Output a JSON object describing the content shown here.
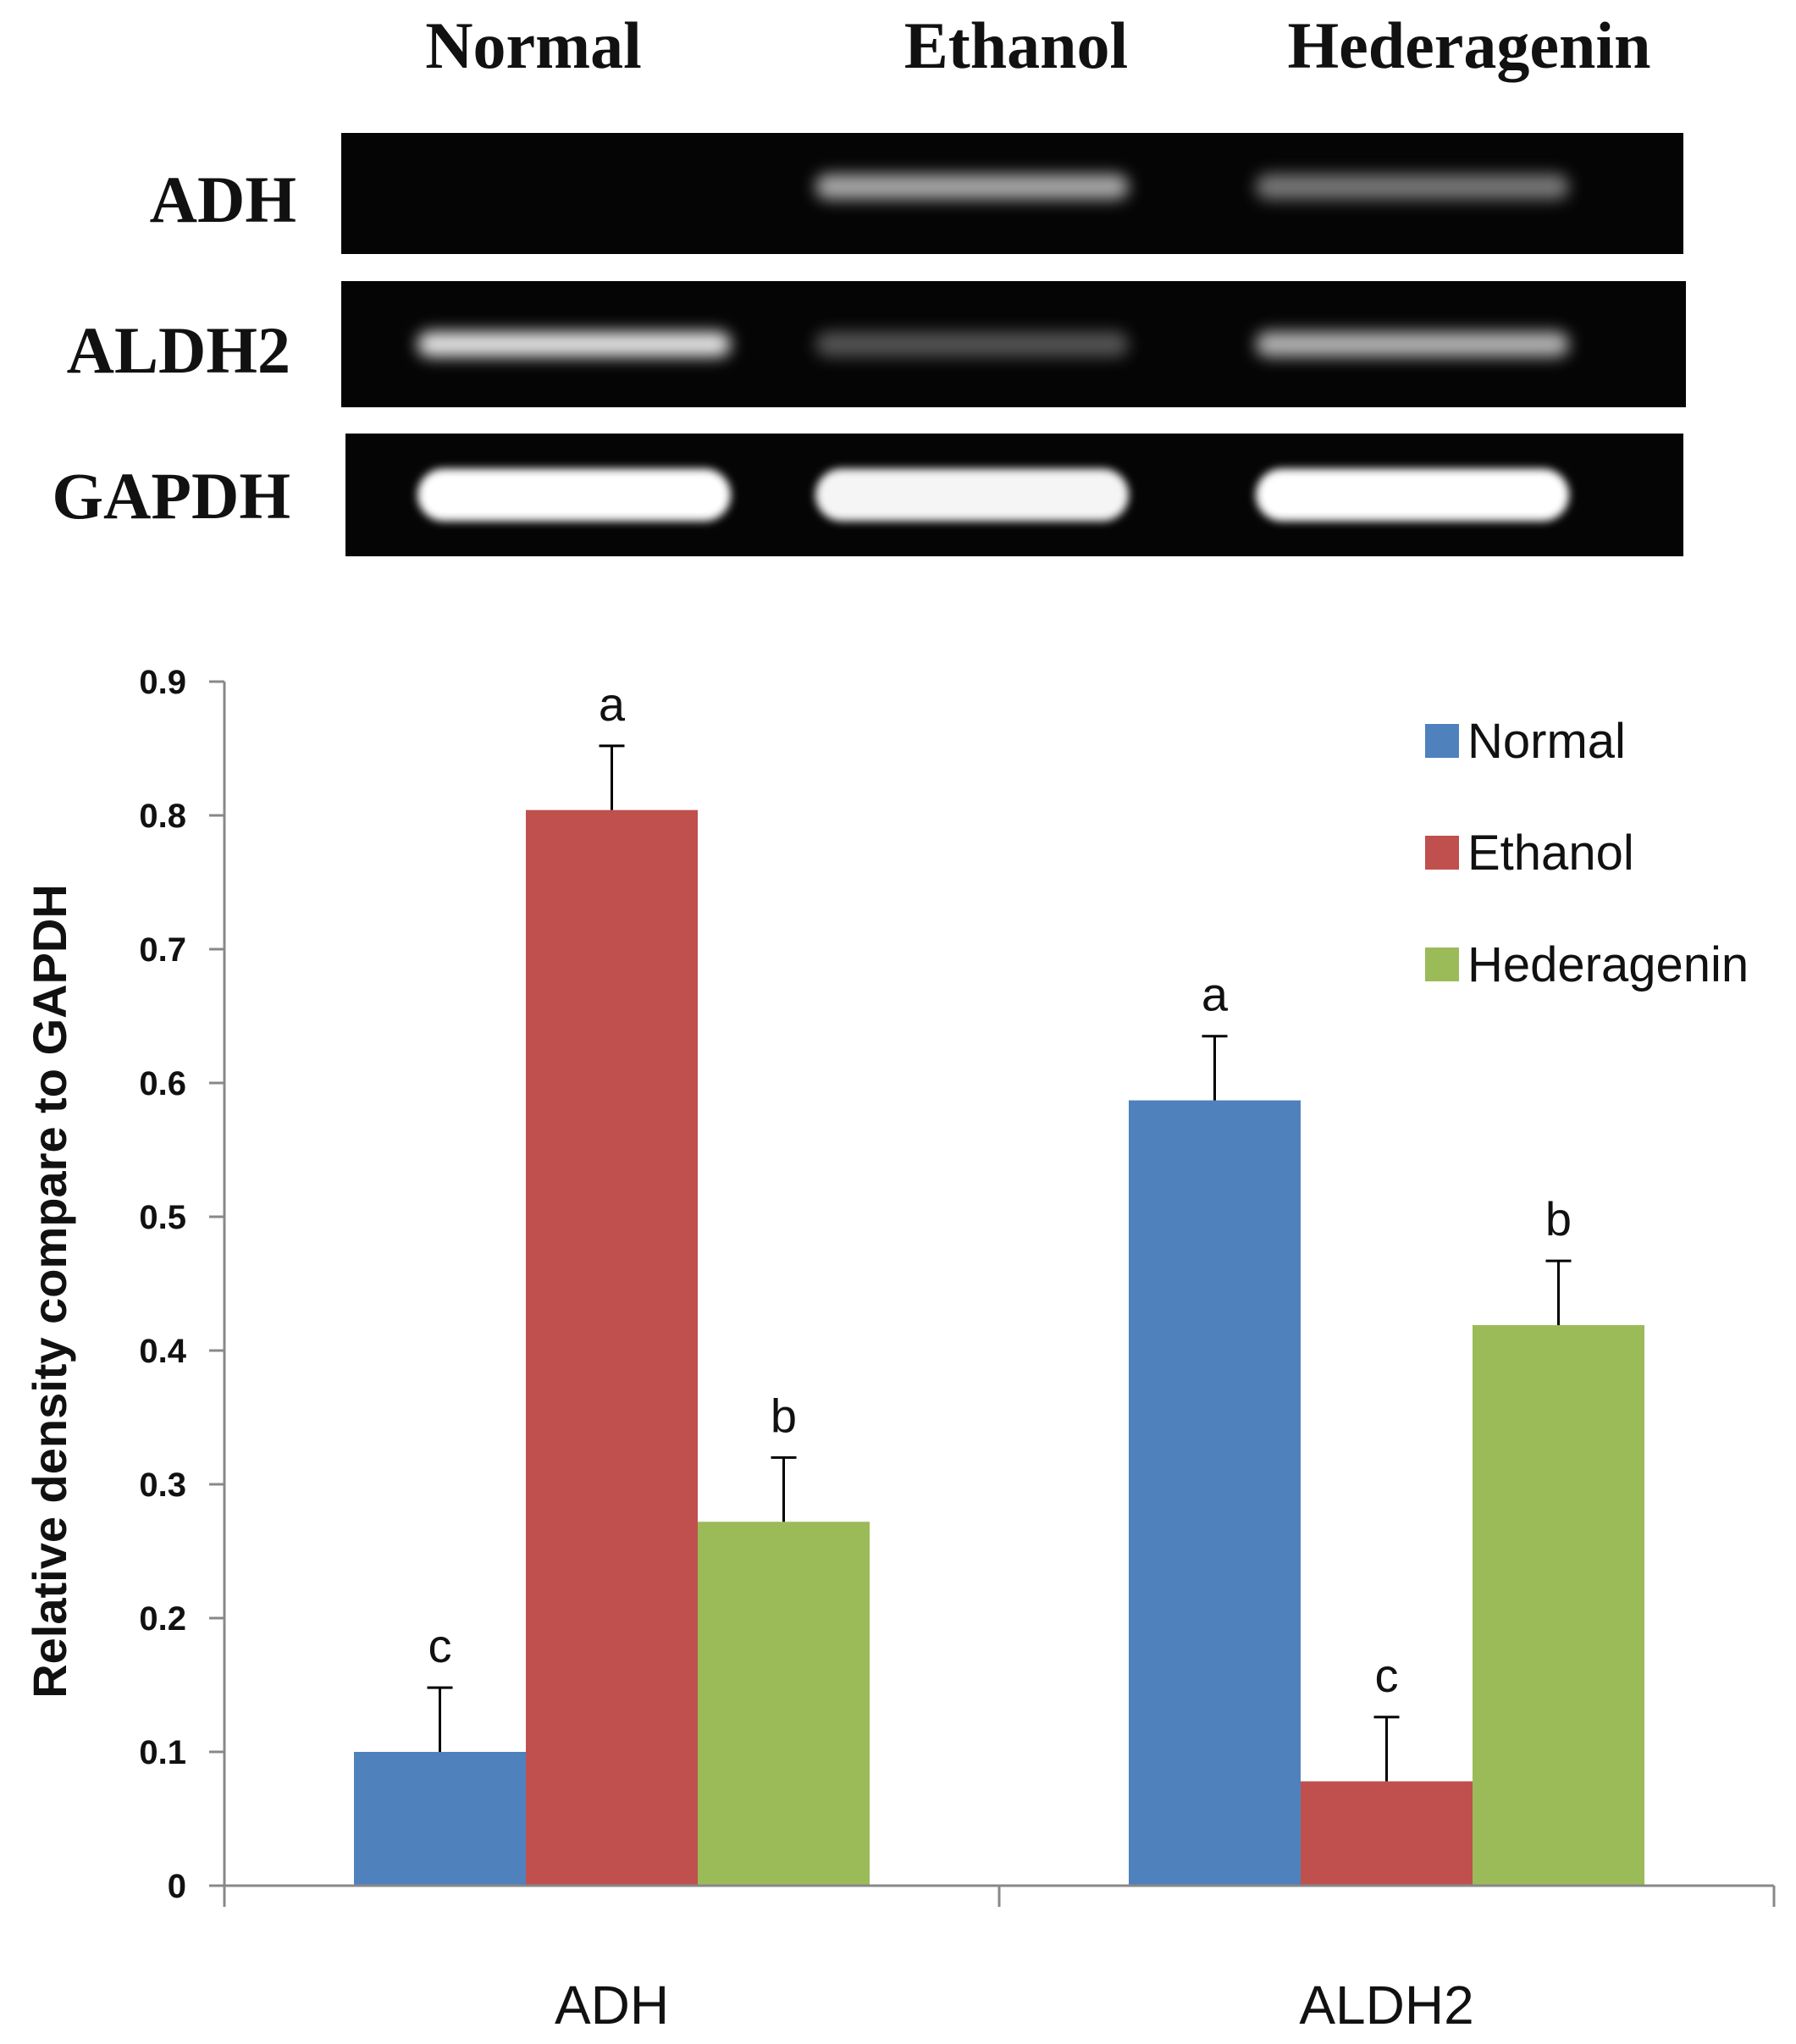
{
  "gel": {
    "lanes": [
      "Normal",
      "Ethanol",
      "Hederagenin"
    ],
    "rows": [
      {
        "label": "ADH",
        "intensity": [
          0.0,
          0.55,
          0.3
        ]
      },
      {
        "label": "ALDH2",
        "intensity": [
          0.85,
          0.12,
          0.6
        ]
      },
      {
        "label": "GAPDH",
        "intensity": [
          1.0,
          0.95,
          1.0
        ]
      }
    ]
  },
  "chart_data": {
    "type": "bar",
    "categories": [
      "ADH",
      "ALDH2"
    ],
    "series": [
      {
        "name": "Normal",
        "color": "#4f81bd",
        "values": [
          0.1,
          0.587
        ],
        "errors": [
          0.048,
          0.048
        ],
        "letters": [
          "c",
          "a"
        ]
      },
      {
        "name": "Ethanol",
        "color": "#c0504d",
        "values": [
          0.804,
          0.078
        ],
        "errors": [
          0.048,
          0.048
        ],
        "letters": [
          "a",
          "c"
        ]
      },
      {
        "name": "Hederagenin",
        "color": "#9bbb59",
        "values": [
          0.272,
          0.419
        ],
        "errors": [
          0.048,
          0.048
        ],
        "letters": [
          "b",
          "b"
        ]
      }
    ],
    "ylabel": "Relative density compare to GAPDH",
    "xlabel": "",
    "ylim": [
      0,
      0.9
    ],
    "yticks": [
      "0",
      "0.1",
      "0.2",
      "0.3",
      "0.4",
      "0.5",
      "0.6",
      "0.7",
      "0.8",
      "0.9"
    ],
    "legend_position": "top-right",
    "grid": false
  }
}
